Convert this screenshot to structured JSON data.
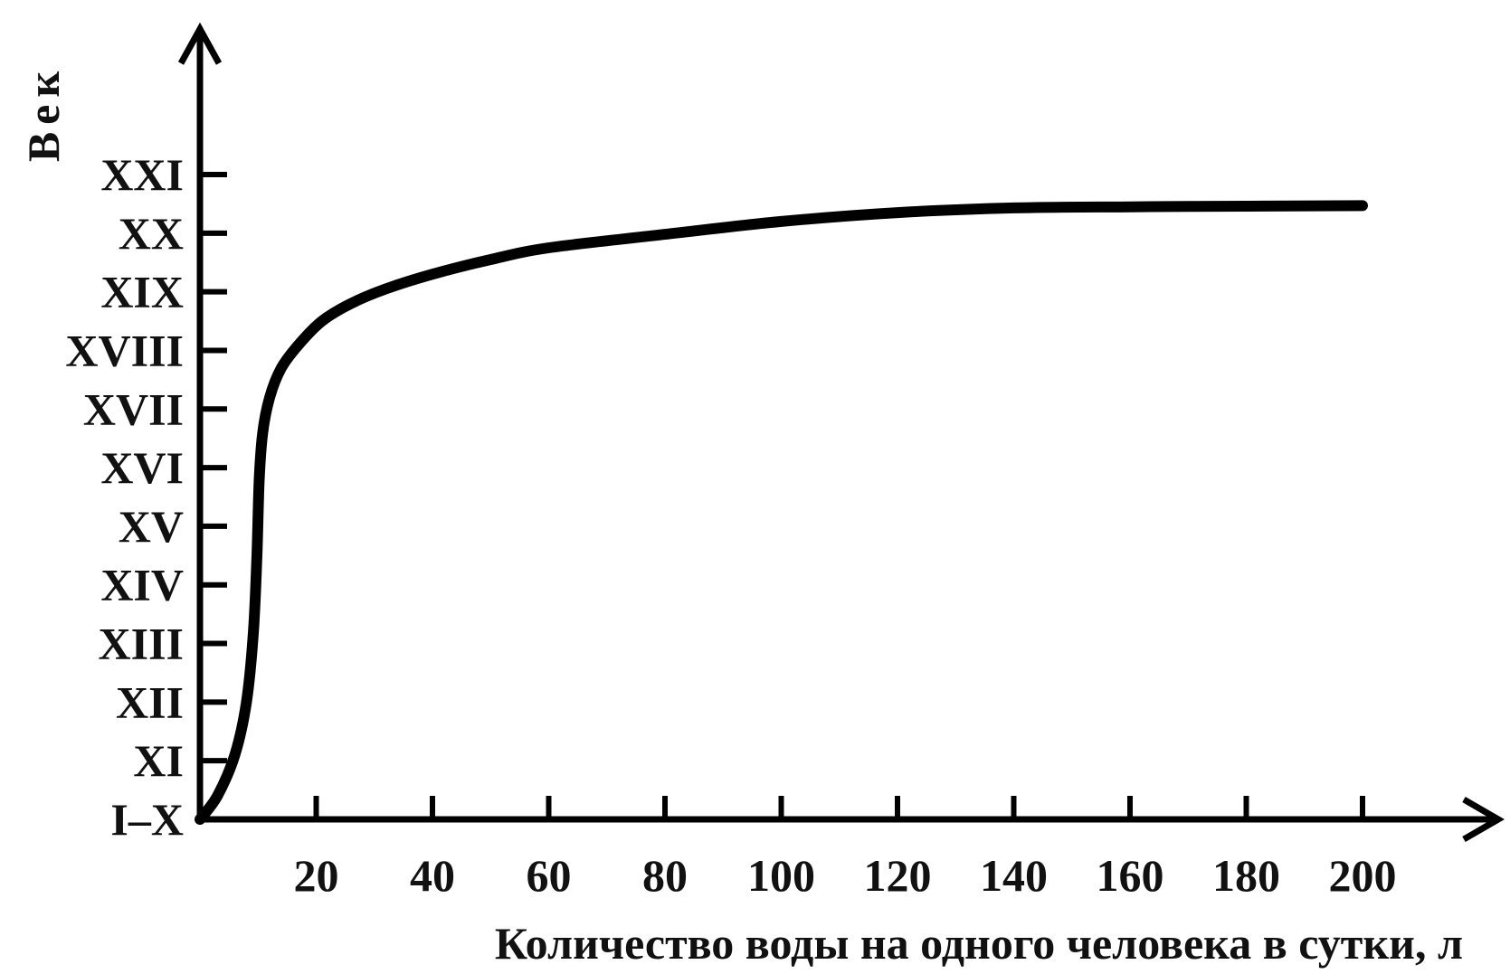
{
  "chart_data": {
    "type": "line",
    "title": "",
    "xlabel": "Количество воды на одного человека в сутки, л",
    "ylabel": "Век",
    "xlim": [
      0,
      200
    ],
    "x_ticks": [
      20,
      40,
      60,
      80,
      100,
      120,
      140,
      160,
      180,
      200
    ],
    "y_categories": [
      "I–X",
      "XI",
      "XII",
      "XIII",
      "XIV",
      "XV",
      "XVI",
      "XVII",
      "XVIII",
      "XIX",
      "XX",
      "XXI"
    ],
    "grid": false,
    "legend": "none",
    "series": [
      {
        "color": "#000000",
        "points": [
          {
            "x": 0,
            "y": 0
          },
          {
            "x": 3,
            "y": 0.4
          },
          {
            "x": 6,
            "y": 1.1
          },
          {
            "x": 8,
            "y": 2.0
          },
          {
            "x": 9.2,
            "y": 3.2
          },
          {
            "x": 9.8,
            "y": 4.5
          },
          {
            "x": 10.2,
            "y": 5.8
          },
          {
            "x": 10.8,
            "y": 6.6
          },
          {
            "x": 12,
            "y": 7.2
          },
          {
            "x": 14,
            "y": 7.7
          },
          {
            "x": 17,
            "y": 8.1
          },
          {
            "x": 21,
            "y": 8.5
          },
          {
            "x": 26,
            "y": 8.8
          },
          {
            "x": 32,
            "y": 9.05
          },
          {
            "x": 40,
            "y": 9.3
          },
          {
            "x": 50,
            "y": 9.55
          },
          {
            "x": 60,
            "y": 9.75
          },
          {
            "x": 80,
            "y": 9.98
          },
          {
            "x": 100,
            "y": 10.2
          },
          {
            "x": 120,
            "y": 10.35
          },
          {
            "x": 140,
            "y": 10.43
          },
          {
            "x": 160,
            "y": 10.45
          },
          {
            "x": 180,
            "y": 10.46
          },
          {
            "x": 200,
            "y": 10.47
          }
        ]
      }
    ]
  }
}
